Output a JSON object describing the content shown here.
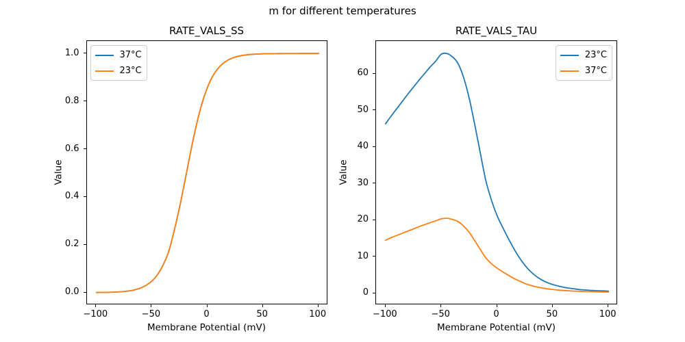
{
  "suptitle": "m for different temperatures",
  "chart_data": [
    {
      "id": "ss",
      "type": "line",
      "title": "RATE_VALS_SS",
      "xlabel": "Membrane Potential (mV)",
      "ylabel": "Value",
      "xlim": [
        -108.5,
        108.5
      ],
      "ylim": [
        -0.052,
        1.052
      ],
      "grid": false,
      "xticks": [
        {
          "v": -100,
          "label": "−100"
        },
        {
          "v": -50,
          "label": "−50"
        },
        {
          "v": 0,
          "label": "0"
        },
        {
          "v": 50,
          "label": "50"
        },
        {
          "v": 100,
          "label": "100"
        }
      ],
      "yticks": [
        {
          "v": 0.0,
          "label": "0.0"
        },
        {
          "v": 0.2,
          "label": "0.2"
        },
        {
          "v": 0.4,
          "label": "0.4"
        },
        {
          "v": 0.6,
          "label": "0.6"
        },
        {
          "v": 0.8,
          "label": "0.8"
        },
        {
          "v": 1.0,
          "label": "1.0"
        }
      ],
      "legend": {
        "loc": "upper-left",
        "entries": [
          {
            "label": "37°C",
            "color": "#1f77b4"
          },
          {
            "label": "23°C",
            "color": "#ff7f0e"
          }
        ]
      },
      "x": [
        -100,
        -95,
        -90,
        -85,
        -80,
        -75,
        -70,
        -65,
        -60,
        -55,
        -50,
        -45,
        -40,
        -35,
        -30,
        -25,
        -20,
        -15,
        -10,
        -5,
        0,
        5,
        10,
        15,
        20,
        25,
        30,
        35,
        40,
        45,
        50,
        55,
        60,
        65,
        70,
        75,
        80,
        85,
        90,
        95,
        100
      ],
      "series": [
        {
          "name": "37°C",
          "color": "#1f77b4",
          "values": [
            0.0004,
            0.0007,
            0.0011,
            0.0019,
            0.003,
            0.0048,
            0.0077,
            0.0124,
            0.0198,
            0.0313,
            0.0489,
            0.0757,
            0.1155,
            0.1719,
            0.2597,
            0.361,
            0.476,
            0.594,
            0.702,
            0.791,
            0.859,
            0.908,
            0.9406,
            0.9623,
            0.9762,
            0.9851,
            0.9907,
            0.9942,
            0.9964,
            0.9978,
            0.9986,
            0.9991,
            0.9995,
            0.9997,
            0.9998,
            0.9999,
            0.9999,
            1.0,
            1.0,
            1.0,
            1.0
          ]
        },
        {
          "name": "23°C",
          "color": "#ff7f0e",
          "values": [
            0.0004,
            0.0007,
            0.0011,
            0.0019,
            0.003,
            0.0048,
            0.0077,
            0.0124,
            0.0198,
            0.0313,
            0.0489,
            0.0757,
            0.1155,
            0.1719,
            0.2597,
            0.361,
            0.476,
            0.594,
            0.702,
            0.791,
            0.859,
            0.908,
            0.9406,
            0.9623,
            0.9762,
            0.9851,
            0.9907,
            0.9942,
            0.9964,
            0.9978,
            0.9986,
            0.9991,
            0.9995,
            0.9997,
            0.9998,
            0.9999,
            0.9999,
            1.0,
            1.0,
            1.0,
            1.0
          ]
        }
      ]
    },
    {
      "id": "tau",
      "type": "line",
      "title": "RATE_VALS_TAU",
      "xlabel": "Membrane Potential (mV)",
      "ylabel": "Value",
      "xlim": [
        -108.5,
        108.5
      ],
      "ylim": [
        -3.2,
        68.9
      ],
      "grid": false,
      "xticks": [
        {
          "v": -100,
          "label": "−100"
        },
        {
          "v": -50,
          "label": "−50"
        },
        {
          "v": 0,
          "label": "0"
        },
        {
          "v": 50,
          "label": "50"
        },
        {
          "v": 100,
          "label": "100"
        }
      ],
      "yticks": [
        {
          "v": 0,
          "label": "0"
        },
        {
          "v": 10,
          "label": "10"
        },
        {
          "v": 20,
          "label": "20"
        },
        {
          "v": 30,
          "label": "30"
        },
        {
          "v": 40,
          "label": "40"
        },
        {
          "v": 50,
          "label": "50"
        },
        {
          "v": 60,
          "label": "60"
        }
      ],
      "legend": {
        "loc": "upper-right",
        "entries": [
          {
            "label": "23°C",
            "color": "#1f77b4"
          },
          {
            "label": "37°C",
            "color": "#ff7f0e"
          }
        ]
      },
      "x": [
        -100,
        -95,
        -90,
        -85,
        -80,
        -75,
        -70,
        -65,
        -60,
        -55,
        -50,
        -45,
        -40,
        -35,
        -30,
        -25,
        -20,
        -15,
        -10,
        -5,
        0,
        5,
        10,
        15,
        20,
        25,
        30,
        35,
        40,
        45,
        50,
        55,
        60,
        65,
        70,
        75,
        80,
        85,
        90,
        95,
        100
      ],
      "series": [
        {
          "name": "23°C",
          "color": "#1f77b4",
          "values": [
            46.3,
            48.4,
            50.4,
            52.4,
            54.4,
            56.3,
            58.2,
            60.0,
            61.8,
            63.4,
            65.3,
            65.5,
            64.6,
            62.8,
            59.0,
            53.4,
            46.2,
            38.4,
            30.8,
            25.5,
            21.3,
            18.1,
            15.1,
            12.3,
            9.8,
            7.7,
            6.0,
            4.7,
            3.7,
            2.95,
            2.4,
            2.0,
            1.65,
            1.4,
            1.2,
            1.0,
            0.9,
            0.8,
            0.72,
            0.66,
            0.6
          ]
        },
        {
          "name": "37°C",
          "color": "#ff7f0e",
          "values": [
            14.5,
            15.2,
            15.8,
            16.4,
            17.0,
            17.6,
            18.2,
            18.75,
            19.3,
            19.8,
            20.35,
            20.5,
            20.2,
            19.6,
            18.4,
            16.7,
            14.4,
            12.0,
            9.7,
            8.1,
            6.9,
            5.9,
            5.0,
            4.1,
            3.4,
            2.7,
            2.2,
            1.8,
            1.5,
            1.25,
            1.05,
            0.9,
            0.78,
            0.68,
            0.6,
            0.54,
            0.49,
            0.45,
            0.41,
            0.38,
            0.36
          ]
        }
      ]
    }
  ]
}
